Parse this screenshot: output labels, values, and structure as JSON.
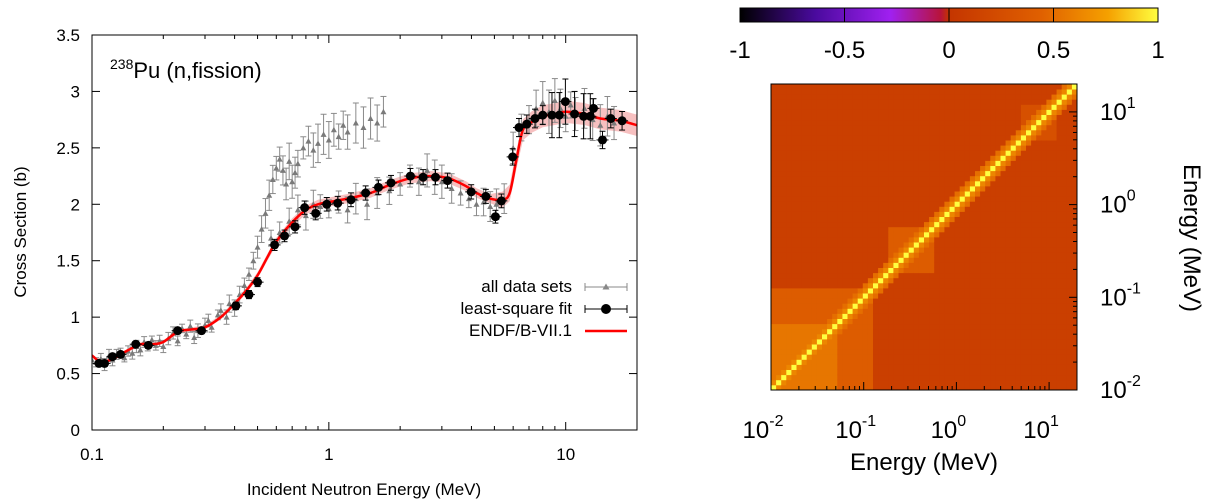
{
  "chart_data": [
    {
      "type": "scatter",
      "annotation": {
        "superscript": "238",
        "main": "Pu (n,fission)"
      },
      "xlabel": "Incident Neutron Energy (MeV)",
      "ylabel": "Cross Section (b)",
      "xscale": "log",
      "xlim": [
        0.1,
        20
      ],
      "ylim": [
        0,
        3.5
      ],
      "x_ticks": [
        {
          "v": 0.1,
          "label": "0.1"
        },
        {
          "v": 1,
          "label": "1"
        },
        {
          "v": 10,
          "label": "10"
        }
      ],
      "y_ticks": [
        {
          "v": 0,
          "label": "0"
        },
        {
          "v": 0.5,
          "label": "0.5"
        },
        {
          "v": 1,
          "label": "1"
        },
        {
          "v": 1.5,
          "label": "1.5"
        },
        {
          "v": 2,
          "label": "2"
        },
        {
          "v": 2.5,
          "label": "2.5"
        },
        {
          "v": 3,
          "label": "3"
        },
        {
          "v": 3.5,
          "label": "3.5"
        }
      ],
      "legend_position": "right-middle",
      "series": [
        {
          "name": "all data sets",
          "kind": "points-with-errorbars",
          "color": "#888888",
          "points": [
            [
              0.1,
              0.62
            ],
            [
              0.104,
              0.6
            ],
            [
              0.109,
              0.63
            ],
            [
              0.113,
              0.58
            ],
            [
              0.118,
              0.66
            ],
            [
              0.122,
              0.62
            ],
            [
              0.127,
              0.67
            ],
            [
              0.132,
              0.69
            ],
            [
              0.137,
              0.64
            ],
            [
              0.142,
              0.7
            ],
            [
              0.148,
              0.68
            ],
            [
              0.154,
              0.74
            ],
            [
              0.16,
              0.71
            ],
            [
              0.166,
              0.78
            ],
            [
              0.172,
              0.74
            ],
            [
              0.179,
              0.8
            ],
            [
              0.186,
              0.75
            ],
            [
              0.193,
              0.79
            ],
            [
              0.2,
              0.74
            ],
            [
              0.21,
              0.81
            ],
            [
              0.22,
              0.86
            ],
            [
              0.23,
              0.79
            ],
            [
              0.24,
              0.9
            ],
            [
              0.25,
              0.85
            ],
            [
              0.26,
              0.92
            ],
            [
              0.27,
              0.82
            ],
            [
              0.28,
              0.88
            ],
            [
              0.3,
              0.93
            ],
            [
              0.31,
              0.97
            ],
            [
              0.32,
              0.91
            ],
            [
              0.34,
              1.02
            ],
            [
              0.35,
              1.06
            ],
            [
              0.37,
              1.0
            ],
            [
              0.38,
              1.12
            ],
            [
              0.4,
              1.08
            ],
            [
              0.42,
              1.2
            ],
            [
              0.44,
              1.28
            ],
            [
              0.46,
              1.38
            ],
            [
              0.48,
              1.5
            ],
            [
              0.5,
              1.62
            ],
            [
              0.52,
              1.78
            ],
            [
              0.54,
              1.92
            ],
            [
              0.56,
              2.08
            ],
            [
              0.58,
              2.22
            ],
            [
              0.6,
              2.32
            ],
            [
              0.62,
              2.4
            ],
            [
              0.64,
              2.3
            ],
            [
              0.66,
              2.18
            ],
            [
              0.68,
              2.38
            ],
            [
              0.7,
              2.2
            ],
            [
              0.72,
              2.28
            ],
            [
              0.74,
              2.36
            ],
            [
              0.78,
              2.5
            ],
            [
              0.82,
              2.56
            ],
            [
              0.86,
              2.48
            ],
            [
              0.9,
              2.54
            ],
            [
              0.95,
              2.62
            ],
            [
              1.0,
              2.57
            ],
            [
              1.05,
              2.66
            ],
            [
              1.1,
              2.6
            ],
            [
              1.15,
              2.7
            ],
            [
              1.2,
              2.64
            ],
            [
              1.3,
              2.72
            ],
            [
              1.4,
              2.68
            ],
            [
              1.5,
              2.76
            ],
            [
              1.6,
              2.72
            ],
            [
              1.7,
              2.82
            ],
            [
              0.57,
              1.7
            ],
            [
              0.62,
              1.75
            ],
            [
              0.68,
              1.85
            ],
            [
              0.74,
              1.95
            ],
            [
              0.8,
              1.9
            ],
            [
              0.86,
              2.0
            ],
            [
              0.92,
              1.98
            ],
            [
              1.0,
              1.96
            ],
            [
              1.1,
              2.02
            ],
            [
              1.2,
              1.95
            ],
            [
              1.3,
              2.05
            ],
            [
              1.45,
              2.0
            ],
            [
              1.6,
              2.1
            ],
            [
              1.8,
              2.12
            ],
            [
              2.0,
              2.18
            ],
            [
              2.2,
              2.25
            ],
            [
              2.4,
              2.2
            ],
            [
              2.6,
              2.3
            ],
            [
              2.8,
              2.24
            ],
            [
              3.0,
              2.2
            ],
            [
              3.3,
              2.14
            ],
            [
              3.6,
              2.1
            ],
            [
              3.9,
              2.05
            ],
            [
              4.2,
              2.0
            ],
            [
              4.5,
              2.02
            ],
            [
              4.8,
              1.98
            ],
            [
              5.1,
              2.0
            ],
            [
              5.5,
              2.05
            ],
            [
              6.0,
              2.5
            ],
            [
              6.5,
              2.68
            ],
            [
              7.0,
              2.75
            ],
            [
              7.5,
              2.85
            ],
            [
              8.0,
              2.9
            ],
            [
              8.5,
              2.82
            ],
            [
              9.0,
              2.92
            ],
            [
              9.5,
              2.85
            ],
            [
              10.0,
              2.78
            ],
            [
              10.5,
              2.88
            ],
            [
              11.0,
              2.8
            ],
            [
              12.0,
              2.85
            ],
            [
              13.0,
              2.75
            ],
            [
              14.0,
              2.7
            ],
            [
              15.0,
              2.78
            ],
            [
              16.0,
              2.72
            ]
          ]
        },
        {
          "name": "least-square fit",
          "kind": "points-with-errorbars",
          "color": "#000000",
          "points": [
            [
              0.107,
              0.59
            ],
            [
              0.113,
              0.59
            ],
            [
              0.122,
              0.65
            ],
            [
              0.132,
              0.67
            ],
            [
              0.153,
              0.76
            ],
            [
              0.173,
              0.75
            ],
            [
              0.23,
              0.88
            ],
            [
              0.29,
              0.88
            ],
            [
              0.405,
              1.1
            ],
            [
              0.46,
              1.2
            ],
            [
              0.5,
              1.31
            ],
            [
              0.59,
              1.64
            ],
            [
              0.65,
              1.72
            ],
            [
              0.72,
              1.8
            ],
            [
              0.79,
              1.97
            ],
            [
              0.88,
              1.92
            ],
            [
              0.98,
              2.0
            ],
            [
              1.09,
              2.01
            ],
            [
              1.24,
              2.04
            ],
            [
              1.43,
              2.1
            ],
            [
              1.62,
              2.15
            ],
            [
              1.83,
              2.19
            ],
            [
              2.21,
              2.25
            ],
            [
              2.5,
              2.24
            ],
            [
              2.82,
              2.24
            ],
            [
              3.17,
              2.21
            ],
            [
              3.99,
              2.11
            ],
            [
              4.6,
              2.07
            ],
            [
              5.05,
              1.89
            ],
            [
              5.35,
              2.03
            ],
            [
              5.97,
              2.42
            ],
            [
              6.35,
              2.68
            ],
            [
              6.85,
              2.71
            ],
            [
              7.42,
              2.76
            ],
            [
              8.0,
              2.79
            ],
            [
              8.75,
              2.79
            ],
            [
              9.4,
              2.79
            ],
            [
              9.97,
              2.91
            ],
            [
              10.9,
              2.8
            ],
            [
              11.9,
              2.78
            ],
            [
              12.7,
              2.78
            ],
            [
              13.1,
              2.85
            ],
            [
              14.3,
              2.57
            ],
            [
              15.5,
              2.76
            ],
            [
              17.3,
              2.74
            ]
          ]
        },
        {
          "name": "ENDF/B-VII.1",
          "kind": "line-with-band",
          "color": "#ff0000",
          "band_color": "#f6b5b5",
          "points": [
            [
              0.1,
              0.66
            ],
            [
              0.11,
              0.6
            ],
            [
              0.125,
              0.64
            ],
            [
              0.14,
              0.7
            ],
            [
              0.16,
              0.76
            ],
            [
              0.18,
              0.76
            ],
            [
              0.2,
              0.78
            ],
            [
              0.23,
              0.87
            ],
            [
              0.26,
              0.89
            ],
            [
              0.3,
              0.91
            ],
            [
              0.35,
              1.0
            ],
            [
              0.4,
              1.12
            ],
            [
              0.45,
              1.24
            ],
            [
              0.5,
              1.37
            ],
            [
              0.55,
              1.53
            ],
            [
              0.6,
              1.67
            ],
            [
              0.7,
              1.84
            ],
            [
              0.8,
              1.95
            ],
            [
              0.9,
              2.0
            ],
            [
              1.0,
              2.02
            ],
            [
              1.2,
              2.05
            ],
            [
              1.5,
              2.1
            ],
            [
              1.8,
              2.17
            ],
            [
              2.2,
              2.23
            ],
            [
              2.7,
              2.25
            ],
            [
              3.2,
              2.23
            ],
            [
              3.8,
              2.16
            ],
            [
              4.2,
              2.1
            ],
            [
              4.8,
              2.05
            ],
            [
              5.4,
              2.04
            ],
            [
              5.8,
              2.1
            ],
            [
              6.2,
              2.4
            ],
            [
              6.6,
              2.66
            ],
            [
              7.2,
              2.73
            ],
            [
              8.0,
              2.78
            ],
            [
              9.0,
              2.8
            ],
            [
              10.0,
              2.82
            ],
            [
              12.0,
              2.8
            ],
            [
              14.0,
              2.76
            ],
            [
              17.0,
              2.74
            ],
            [
              20.0,
              2.7
            ]
          ]
        }
      ]
    },
    {
      "type": "heatmap",
      "colorbar": {
        "min": -1,
        "max": 1,
        "ticks": [
          {
            "v": -1,
            "label": "-1"
          },
          {
            "v": -0.5,
            "label": "-0.5"
          },
          {
            "v": 0,
            "label": "0"
          },
          {
            "v": 0.5,
            "label": "0.5"
          },
          {
            "v": 1,
            "label": "1"
          }
        ]
      },
      "xlabel": "Energy (MeV)",
      "ylabel": "Energy (MeV)",
      "xscale": "log",
      "yscale": "log",
      "xlim": [
        0.01,
        20
      ],
      "ylim": [
        0.01,
        20
      ],
      "x_ticks": [
        {
          "v": 0.01,
          "base": "10",
          "exp": "-2"
        },
        {
          "v": 0.1,
          "base": "10",
          "exp": "-1"
        },
        {
          "v": 1,
          "base": "10",
          "exp": "0"
        },
        {
          "v": 10,
          "base": "10",
          "exp": "1"
        }
      ],
      "y_ticks": [
        {
          "v": 0.01,
          "base": "10",
          "exp": "-2"
        },
        {
          "v": 0.1,
          "base": "10",
          "exp": "-1"
        },
        {
          "v": 1,
          "base": "10",
          "exp": "0"
        },
        {
          "v": 10,
          "base": "10",
          "exp": "1"
        }
      ],
      "grid_cells": 60,
      "background_correlation": 0.1,
      "blocks": [
        {
          "range": [
            0.01,
            0.13
          ],
          "correlation": 0.4
        },
        {
          "range": [
            0.01,
            0.05
          ],
          "correlation": 0.55
        },
        {
          "range": [
            0.18,
            0.6
          ],
          "correlation": 0.4
        },
        {
          "range": [
            5.0,
            12.0
          ],
          "correlation": 0.28
        }
      ]
    }
  ]
}
